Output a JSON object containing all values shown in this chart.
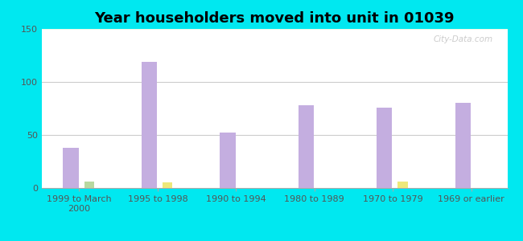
{
  "title": "Year householders moved into unit in 01039",
  "categories": [
    "1999 to March\n2000",
    "1995 to 1998",
    "1990 to 1994",
    "1980 to 1989",
    "1970 to 1979",
    "1969 or earlier"
  ],
  "white_non_hispanic": [
    38,
    119,
    52,
    78,
    76,
    80
  ],
  "other_race": [
    6,
    0,
    0,
    0,
    0,
    0
  ],
  "hispanic_or_latino": [
    0,
    5,
    0,
    0,
    6,
    0
  ],
  "bar_width": 0.18,
  "ylim": [
    0,
    150
  ],
  "yticks": [
    0,
    50,
    100,
    150
  ],
  "white_color": "#c4aee0",
  "other_color": "#b8d8a0",
  "hispanic_color": "#ede87a",
  "outer_bg_color": "#00e8f0",
  "title_fontsize": 13,
  "tick_fontsize": 8,
  "legend_fontsize": 9,
  "watermark": "City-Data.com"
}
